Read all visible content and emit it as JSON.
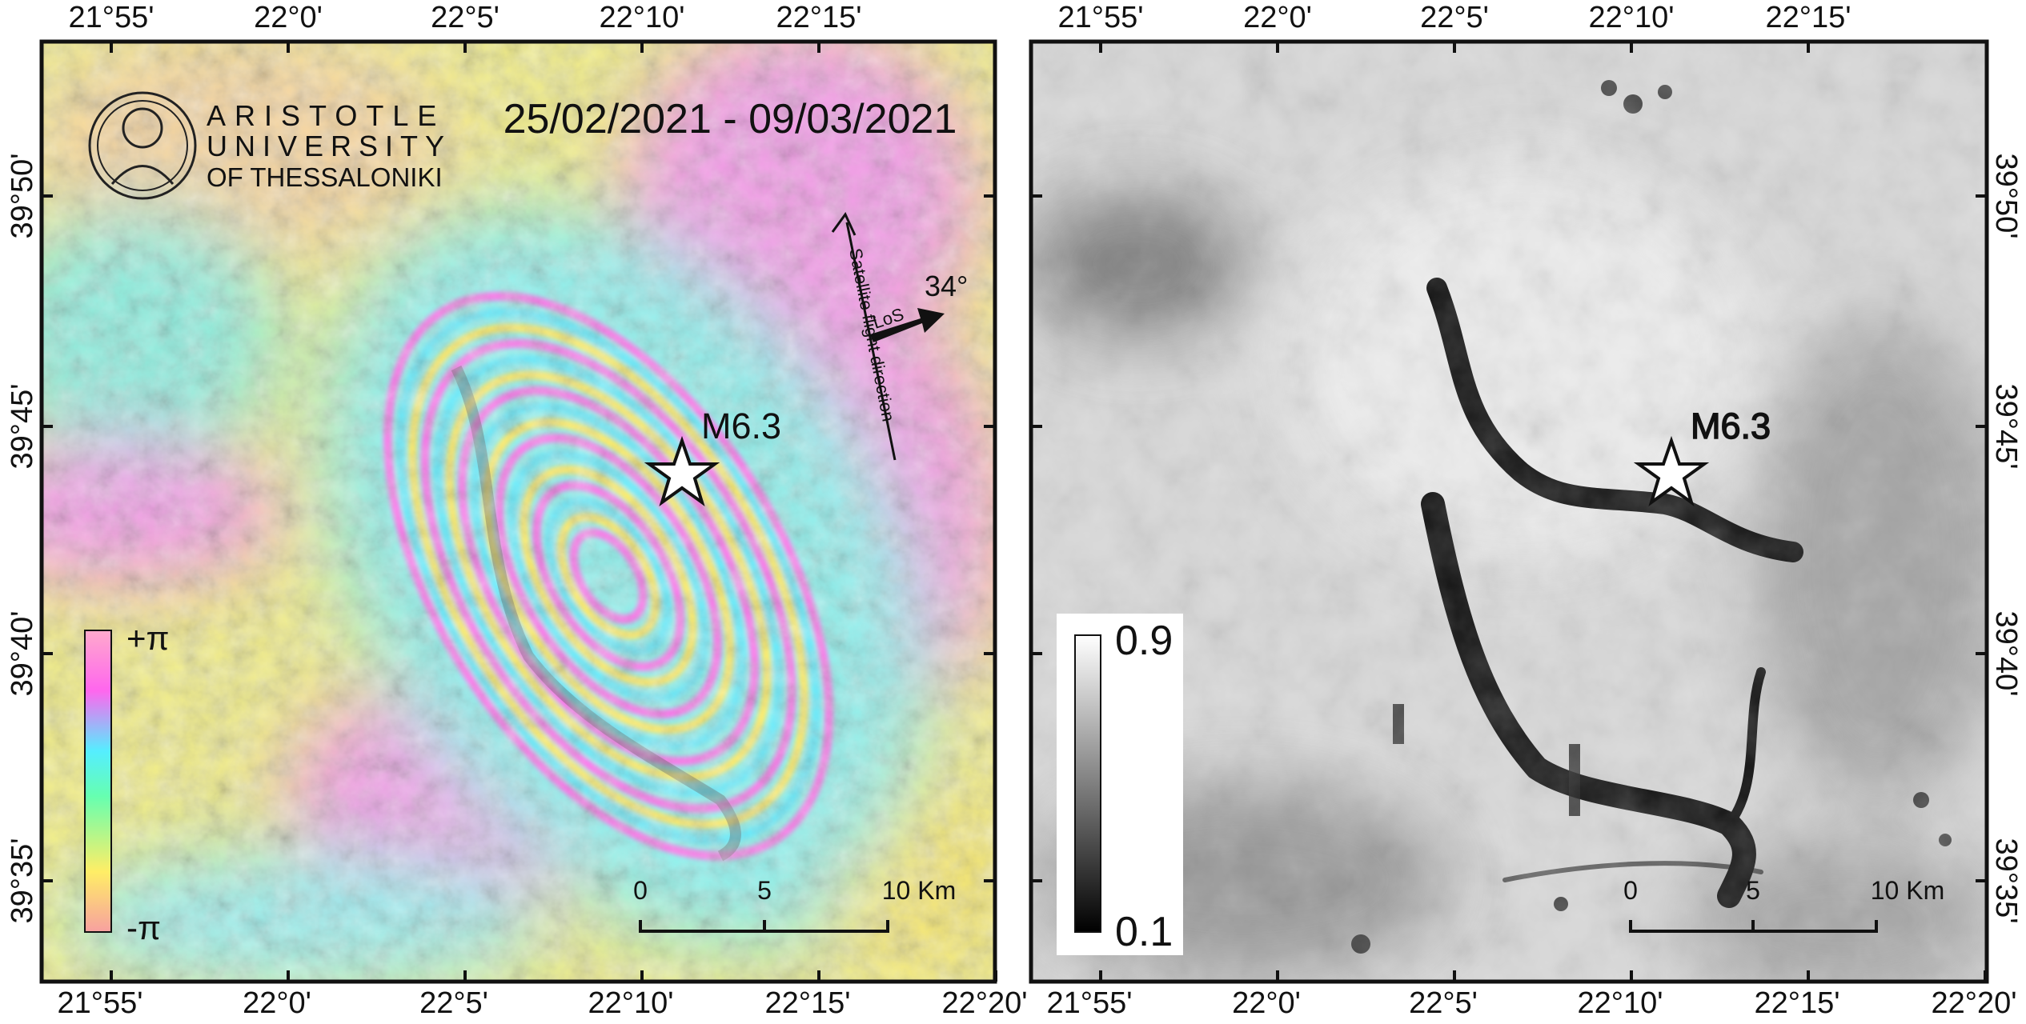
{
  "longitude_top": [
    "21°55'",
    "22°0'",
    "22°5'",
    "22°10'",
    "22°15'"
  ],
  "longitude_bottom": [
    "21°55'",
    "22°0'",
    "22°5'",
    "22°10'",
    "22°15'",
    "22°20'"
  ],
  "latitude": [
    "39°50'",
    "39°45'",
    "39°40'",
    "39°35'"
  ],
  "interferogram": {
    "logo": [
      "ARISTOTLE",
      "UNIVERSITY",
      "OF THESSALONIKI"
    ],
    "date_range": "25/02/2021 - 09/03/2021",
    "epicenter": "M6.3",
    "flight_direction": "Satellite flight direction",
    "line_of_sight": "LoS",
    "incidence": "34°",
    "color_scale": {
      "max": "+π",
      "min": "-π"
    },
    "scale_bar": [
      0,
      5,
      "10 Km"
    ]
  },
  "coherence": {
    "epicenter": "M6.3",
    "color_scale": {
      "max": 0.9,
      "min": 0.1
    },
    "scale_bar": [
      0,
      5,
      "10 Km"
    ]
  }
}
